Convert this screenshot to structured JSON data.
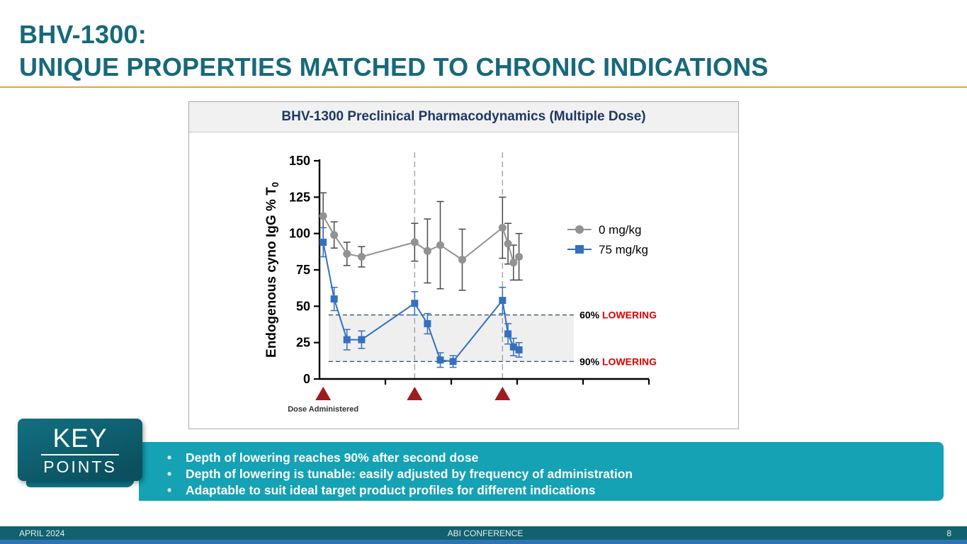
{
  "slide": {
    "title_line1": "BHV-1300:",
    "title_line2": "UNIQUE PROPERTIES MATCHED TO CHRONIC INDICATIONS"
  },
  "key_points": {
    "badge_top": "KEY",
    "badge_bottom": "POINTS",
    "bullets": [
      "Depth of lowering reaches 90% after second dose",
      "Depth of lowering is tunable: easily adjusted by frequency of administration",
      "Adaptable to suit ideal target product profiles for different indications"
    ]
  },
  "footer": {
    "left": "APRIL 2024",
    "center": "ABI CONFERENCE",
    "page_number": "8"
  },
  "chart_data": {
    "type": "line",
    "title": "BHV-1300 Preclinical Pharmacodynamics (Multiple Dose)",
    "ylabel": "Endogenous cyno IgG % T0",
    "ylabel_main": "Endogenous cyno IgG % T",
    "ylabel_sub": "0",
    "ylim": [
      0,
      150
    ],
    "yticks": [
      0,
      25,
      50,
      75,
      100,
      125,
      150
    ],
    "xlim": [
      0,
      18
    ],
    "x_tick_count": 6,
    "grid": false,
    "legend_position": "upper-right-inside",
    "series": [
      {
        "name": "0 mg/kg",
        "color": "#929292",
        "errbar_color": "#4A4A4A",
        "marker": "circle",
        "x": [
          0.2,
          0.8,
          1.5,
          2.3,
          5.2,
          5.9,
          6.6,
          7.8,
          10.0,
          10.3,
          10.6,
          10.9
        ],
        "y": [
          112,
          99,
          86,
          84,
          94,
          88,
          92,
          82,
          104,
          93,
          80,
          84
        ],
        "err": [
          16,
          9,
          8,
          7,
          13,
          22,
          30,
          21,
          21,
          14,
          12,
          16
        ]
      },
      {
        "name": "75 mg/kg",
        "color": "#3470BE",
        "errbar_color": "#3470BE",
        "marker": "square",
        "x": [
          0.2,
          0.8,
          1.5,
          2.3,
          5.2,
          5.9,
          6.6,
          7.3,
          10.0,
          10.3,
          10.6,
          10.9
        ],
        "y": [
          94,
          55,
          27,
          27,
          52,
          38,
          13,
          12,
          54,
          31,
          22,
          20
        ],
        "err": [
          10,
          8,
          7,
          6,
          8,
          7,
          5,
          4,
          9,
          7,
          6,
          5
        ]
      }
    ],
    "reference_lines": [
      {
        "value": 44,
        "prefix": "60%",
        "label": "LOWERING",
        "prefix_color": "#000000",
        "label_color": "#E00000"
      },
      {
        "value": 12,
        "prefix": "90%",
        "label": "LOWERING",
        "prefix_color": "#000000",
        "label_color": "#E00000"
      }
    ],
    "shaded_band": {
      "y": [
        12,
        44
      ],
      "x": [
        0.5,
        13.9
      ],
      "color": "#EFEFEF"
    },
    "dose_markers": {
      "x": [
        0.2,
        5.2,
        10.0
      ],
      "color": "#9E1B1E",
      "label": "Dose Administered"
    },
    "dose_vlines": [
      5.2,
      10.0
    ]
  }
}
